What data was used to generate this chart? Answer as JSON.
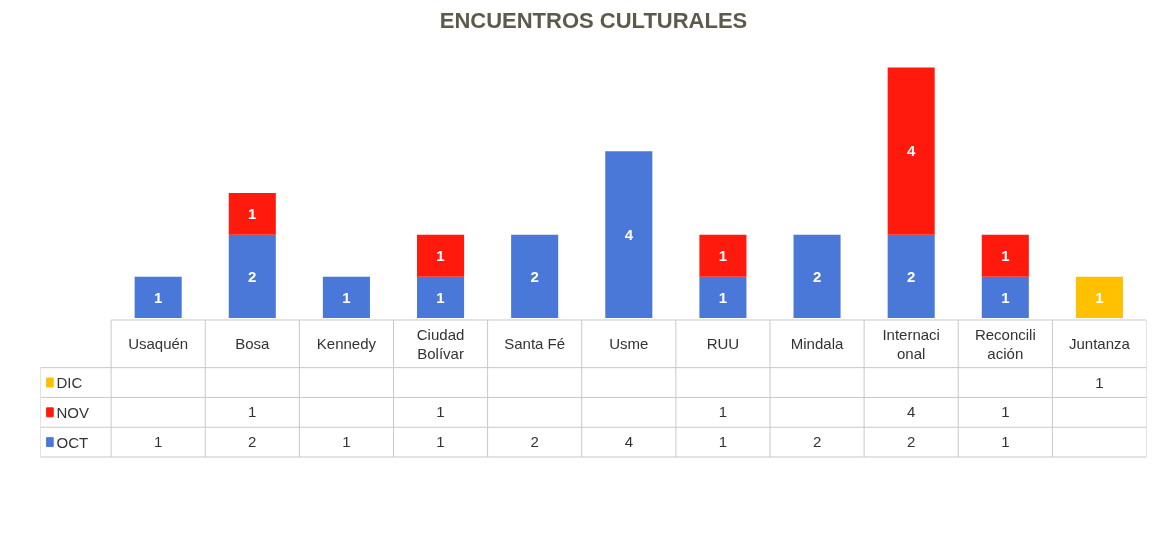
{
  "chart_data": {
    "type": "bar",
    "title": "ENCUENTROS CULTURALES",
    "stacked": true,
    "data_labels": true,
    "legend": "bottom left",
    "grid": false,
    "categories": [
      "Usaquén",
      "Bosa",
      "Kennedy",
      "Ciudad Bolívar",
      "Santa Fé",
      "Usme",
      "RUU",
      "Mindala",
      "Internacional",
      "Reconciliación",
      "Juntanza"
    ],
    "series": [
      {
        "name": "OCT",
        "color": "#4a78d8",
        "values": [
          1,
          2,
          1,
          1,
          2,
          4,
          1,
          2,
          2,
          1,
          null
        ],
        "value_labels": [
          "1",
          "2",
          "1",
          "1",
          "2",
          "4",
          "1",
          "2",
          "2",
          "1",
          null
        ]
      },
      {
        "name": "NOV",
        "color": "#ff1a0d",
        "values": [
          null,
          1,
          null,
          1,
          null,
          null,
          1,
          null,
          4,
          1,
          null
        ],
        "value_labels": [
          null,
          "1",
          null,
          "1",
          null,
          null,
          "1",
          null,
          "4",
          "1",
          null
        ]
      },
      {
        "name": "DIC",
        "color": "#ffc000",
        "values": [
          null,
          null,
          null,
          null,
          null,
          null,
          null,
          null,
          null,
          null,
          1
        ],
        "value_labels": [
          null,
          null,
          null,
          null,
          null,
          null,
          null,
          null,
          null,
          null,
          "1"
        ]
      }
    ]
  }
}
